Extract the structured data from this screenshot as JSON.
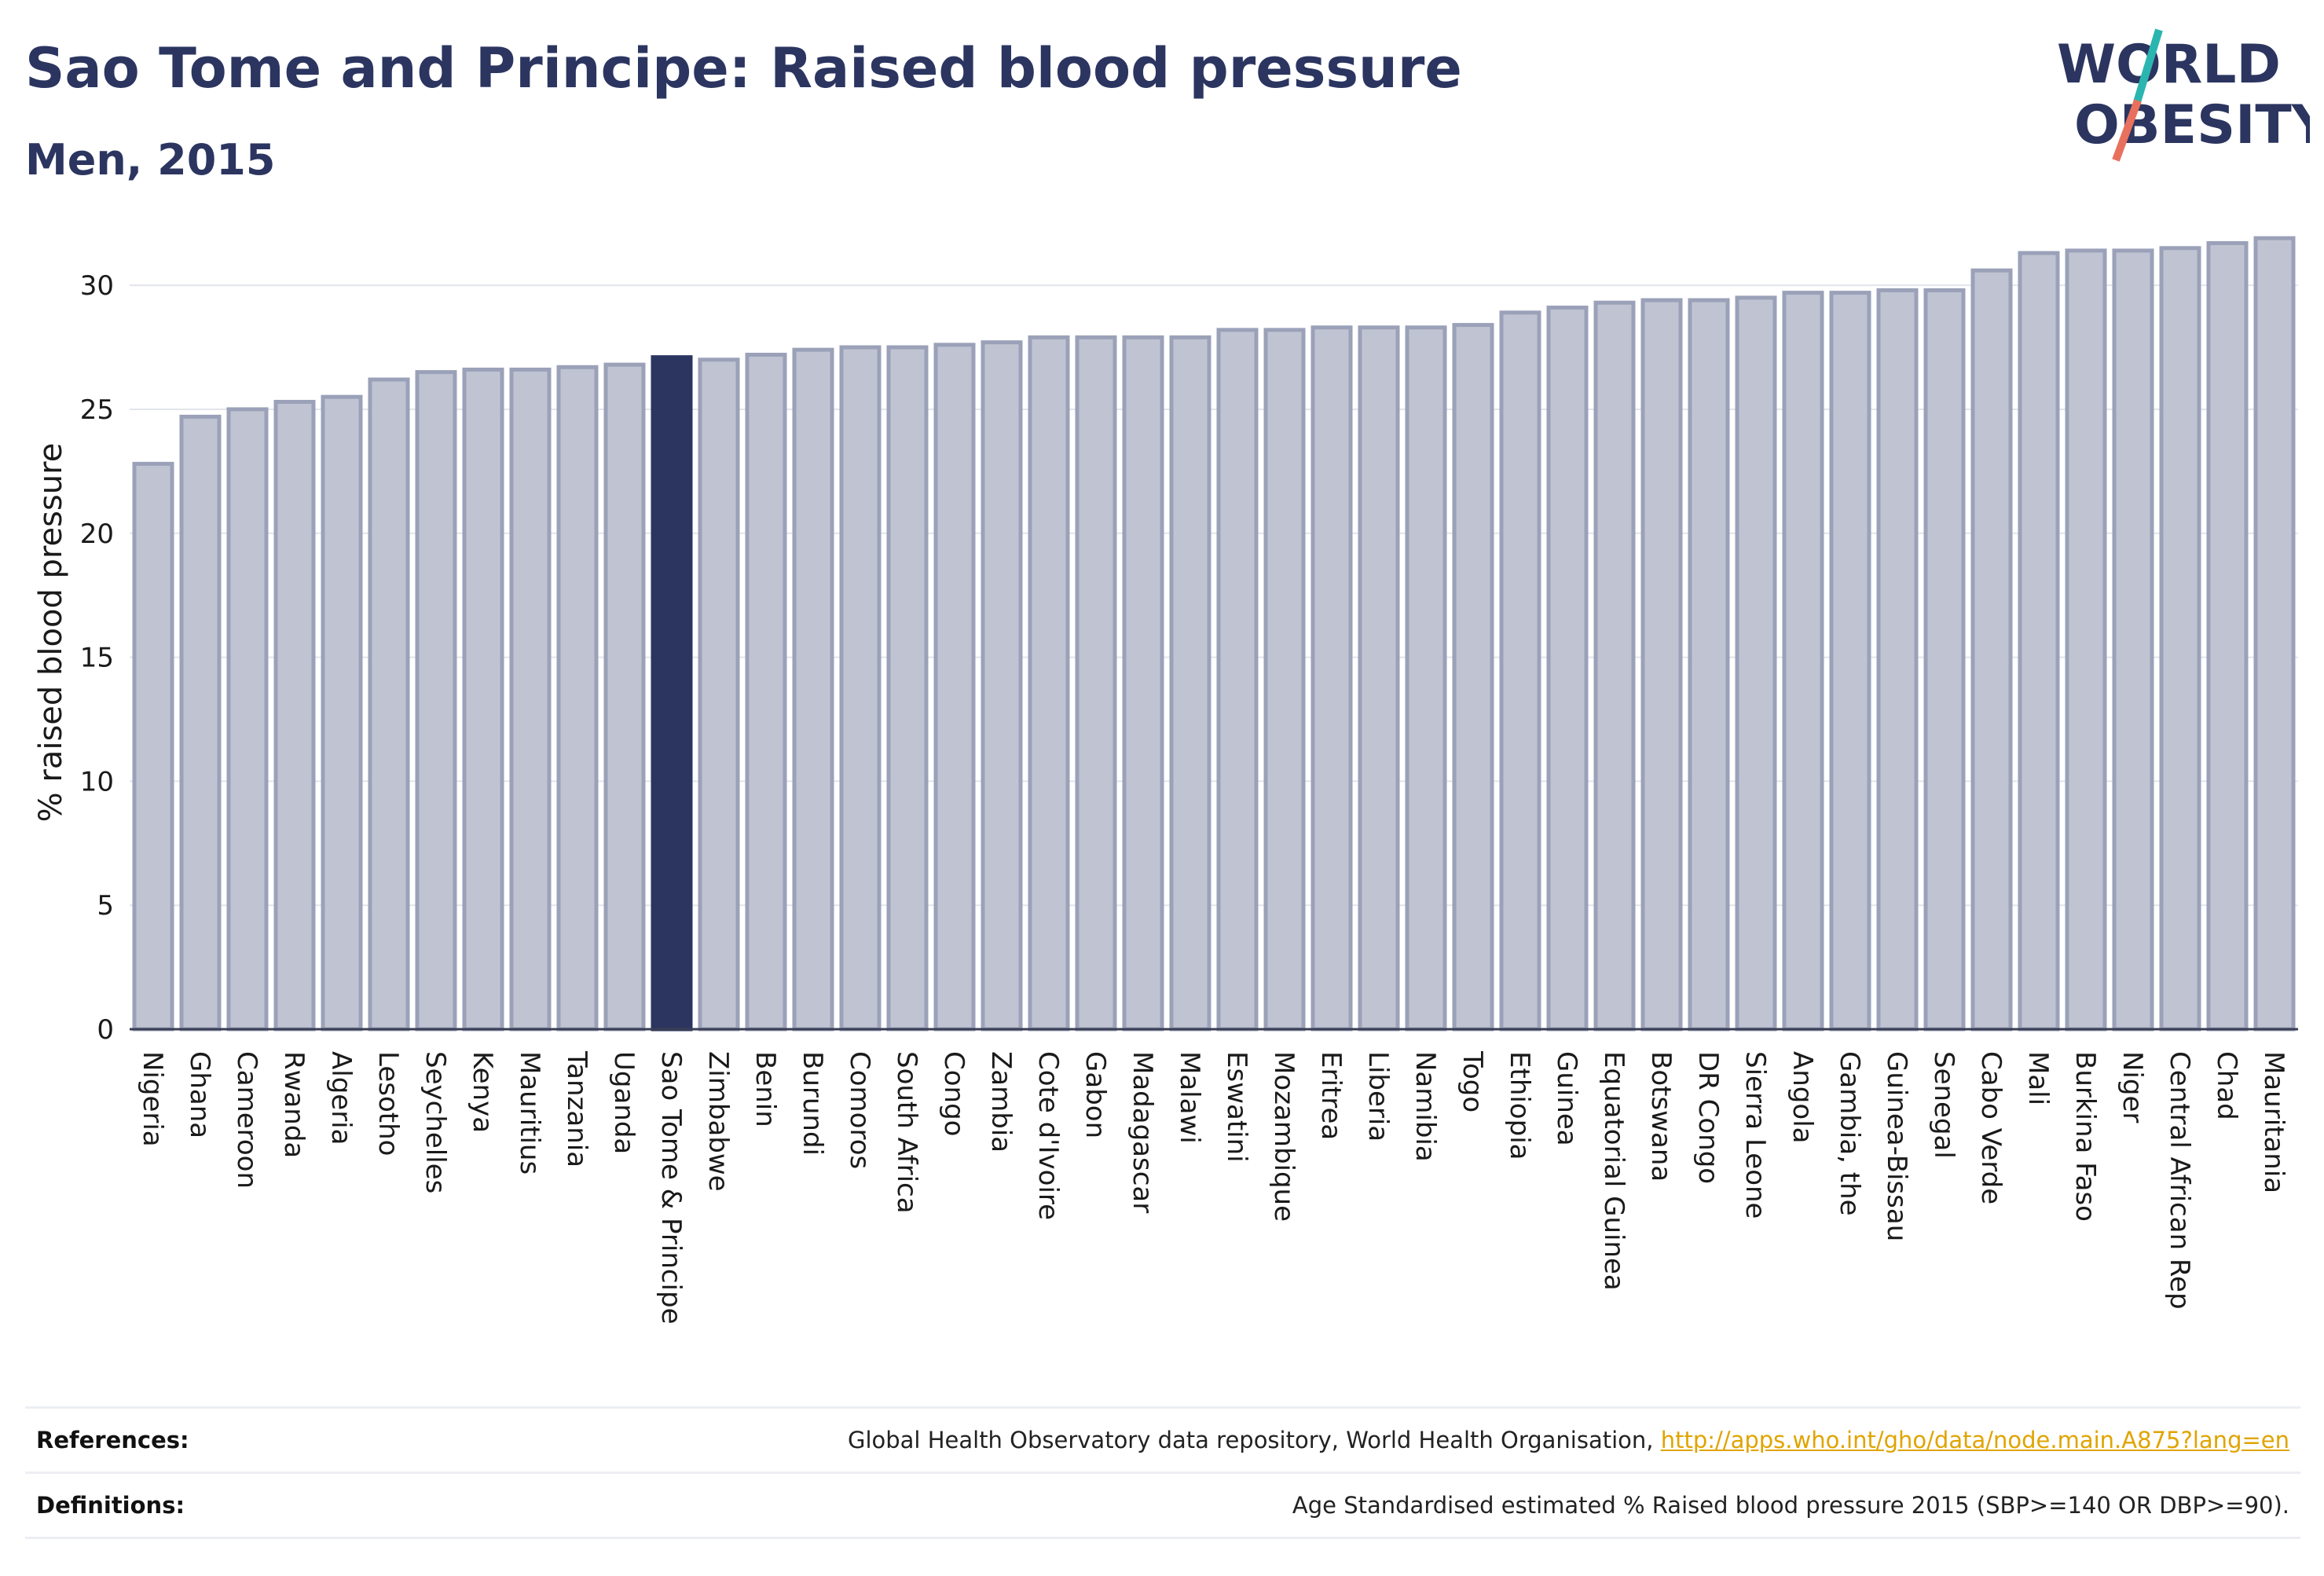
{
  "header": {
    "title": "Sao Tome and Principe: Raised blood pressure",
    "subtitle": "Men, 2015"
  },
  "logo": {
    "line1": "WORLD",
    "line2": "OBESITY"
  },
  "colors": {
    "bar_fill": "#c0c4d2",
    "bar_stroke": "#9aa1b8",
    "highlight": "#2b3560",
    "title": "#2b3560",
    "link": "#e0a400",
    "logo_slash_top": "#2bb5b0",
    "logo_slash_bottom": "#e8715e"
  },
  "chart_data": {
    "type": "bar",
    "title": "Sao Tome and Principe: Raised blood pressure",
    "subtitle": "Men, 2015",
    "ylabel": "% raised blood pressure",
    "xlabel": "",
    "ylim": [
      0,
      32
    ],
    "yticks": [
      0,
      5,
      10,
      15,
      20,
      25,
      30
    ],
    "grid": true,
    "highlight": "Sao Tome & Principe",
    "categories": [
      "Nigeria",
      "Ghana",
      "Cameroon",
      "Rwanda",
      "Algeria",
      "Lesotho",
      "Seychelles",
      "Kenya",
      "Mauritius",
      "Tanzania",
      "Uganda",
      "Sao Tome & Principe",
      "Zimbabwe",
      "Benin",
      "Burundi",
      "Comoros",
      "South Africa",
      "Congo",
      "Zambia",
      "Cote d'Ivoire",
      "Gabon",
      "Madagascar",
      "Malawi",
      "Eswatini",
      "Mozambique",
      "Eritrea",
      "Liberia",
      "Namibia",
      "Togo",
      "Ethiopia",
      "Guinea",
      "Equatorial Guinea",
      "Botswana",
      "DR Congo",
      "Sierra Leone",
      "Angola",
      "Gambia, the",
      "Guinea-Bissau",
      "Senegal",
      "Cabo Verde",
      "Mali",
      "Burkina Faso",
      "Niger",
      "Central African Rep",
      "Chad",
      "Mauritania"
    ],
    "values": [
      22.8,
      24.7,
      25.0,
      25.3,
      25.5,
      26.2,
      26.5,
      26.6,
      26.6,
      26.7,
      26.8,
      27.1,
      27.0,
      27.2,
      27.4,
      27.5,
      27.5,
      27.6,
      27.7,
      27.9,
      27.9,
      27.9,
      27.9,
      28.2,
      28.2,
      28.3,
      28.3,
      28.3,
      28.4,
      28.9,
      29.1,
      29.3,
      29.4,
      29.4,
      29.5,
      29.7,
      29.7,
      29.8,
      29.8,
      30.6,
      31.3,
      31.4,
      31.4,
      31.5,
      31.7,
      31.9
    ]
  },
  "footer": {
    "references_label": "References:",
    "references_text": "Global Health Observatory data repository, World Health Organisation, ",
    "references_link": "http://apps.who.int/gho/data/node.main.A875?lang=en",
    "definitions_label": "Definitions:",
    "definitions_text": "Age Standardised estimated % Raised blood pressure 2015 (SBP>=140 OR DBP>=90)."
  }
}
